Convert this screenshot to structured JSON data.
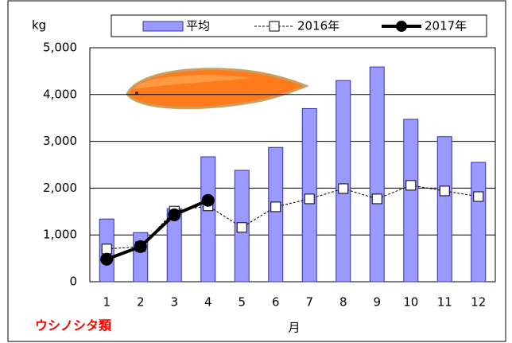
{
  "chart_data": {
    "type": "bar",
    "title": "ウシノシタ類",
    "x_label": "月",
    "y_label": "kg",
    "categories": [
      "1",
      "2",
      "3",
      "4",
      "5",
      "6",
      "7",
      "8",
      "9",
      "10",
      "11",
      "12"
    ],
    "series": [
      {
        "name": "平均",
        "type": "bar",
        "color": "#9999ff",
        "values": [
          1340,
          1050,
          1560,
          2670,
          2380,
          2870,
          3700,
          4300,
          4590,
          3470,
          3100,
          2550
        ]
      },
      {
        "name": "2016年",
        "type": "line",
        "color": "#000000",
        "dashed": true,
        "marker": "square",
        "values": [
          700,
          750,
          1510,
          1620,
          1160,
          1600,
          1770,
          1990,
          1770,
          2060,
          1940,
          1820
        ]
      },
      {
        "name": "2017年",
        "type": "line",
        "color": "#000000",
        "dashed": false,
        "marker": "circle",
        "values": [
          480,
          750,
          1430,
          1740,
          null,
          null,
          null,
          null,
          null,
          null,
          null,
          null
        ]
      }
    ],
    "ylim": [
      0,
      5000
    ],
    "yticks": [
      0,
      {
        "value": 1000,
        "label": "1,000"
      },
      {
        "value": 2000,
        "label": "2,000"
      },
      {
        "value": 3000,
        "label": "3,000"
      },
      {
        "value": 4000,
        "label": "4,000"
      },
      {
        "value": 5000,
        "label": "5,000"
      }
    ],
    "grid": true
  }
}
